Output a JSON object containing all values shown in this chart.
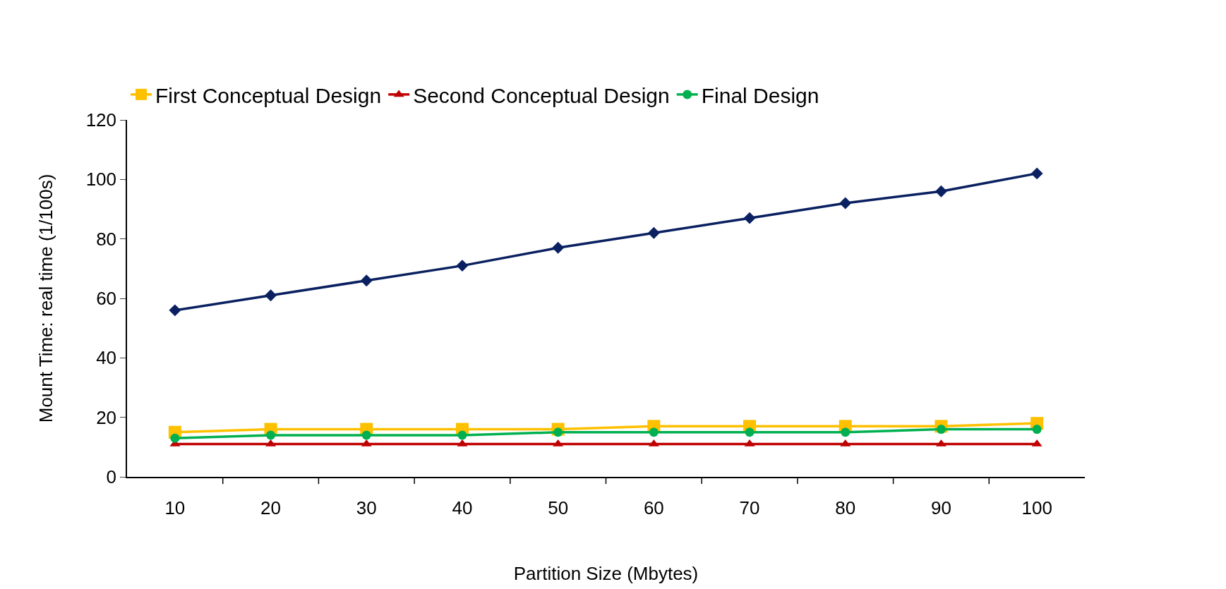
{
  "chart_data": {
    "type": "line",
    "xlabel": "Partition Size (Mbytes)",
    "ylabel": "Mount Time: real time (1/100s)",
    "categories": [
      "10",
      "20",
      "30",
      "40",
      "50",
      "60",
      "70",
      "80",
      "90",
      "100"
    ],
    "series": [
      {
        "color": "#0a2060",
        "marker": "diamond",
        "values": [
          56,
          61,
          66,
          71,
          77,
          82,
          87,
          92,
          96,
          102
        ]
      },
      {
        "name": "First Conceptual Design",
        "color": "#ffc000",
        "marker": "square",
        "values": [
          15,
          16,
          16,
          16,
          16,
          17,
          17,
          17,
          17,
          18
        ]
      },
      {
        "name": "Second Conceptual Design",
        "color": "#c00000",
        "marker": "triangle",
        "values": [
          11,
          11,
          11,
          11,
          11,
          11,
          11,
          11,
          11,
          11
        ]
      },
      {
        "name": "Final Design",
        "color": "#00b050",
        "marker": "circle",
        "values": [
          13,
          14,
          14,
          14,
          15,
          15,
          15,
          15,
          16,
          16
        ]
      }
    ],
    "ylim": [
      0,
      120
    ],
    "yticks": [
      0,
      20,
      40,
      60,
      80,
      100,
      120
    ],
    "grid": false,
    "legend": "top",
    "line_style": "solid"
  }
}
